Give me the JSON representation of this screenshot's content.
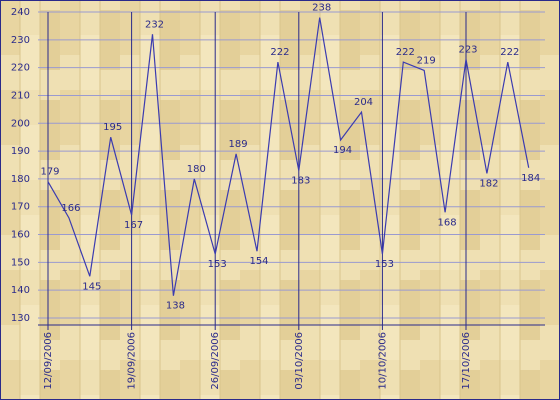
{
  "chart_data": {
    "type": "line",
    "categories": [
      "12/09/2006",
      null,
      null,
      null,
      "19/09/2006",
      null,
      null,
      null,
      "26/09/2006",
      null,
      null,
      null,
      "03/10/2006",
      null,
      null,
      null,
      "10/10/2006",
      null,
      null,
      null,
      "17/10/2006",
      null,
      null,
      null
    ],
    "values": [
      179,
      166,
      145,
      195,
      167,
      232,
      138,
      180,
      153,
      189,
      154,
      222,
      183,
      238,
      194,
      204,
      153,
      222,
      219,
      168,
      223,
      182,
      222,
      184
    ],
    "color": "#3b3bb0",
    "ylim": [
      130,
      240
    ],
    "yticks": [
      130,
      140,
      150,
      160,
      170,
      180,
      190,
      200,
      210,
      220,
      230,
      240
    ],
    "grid": true
  }
}
